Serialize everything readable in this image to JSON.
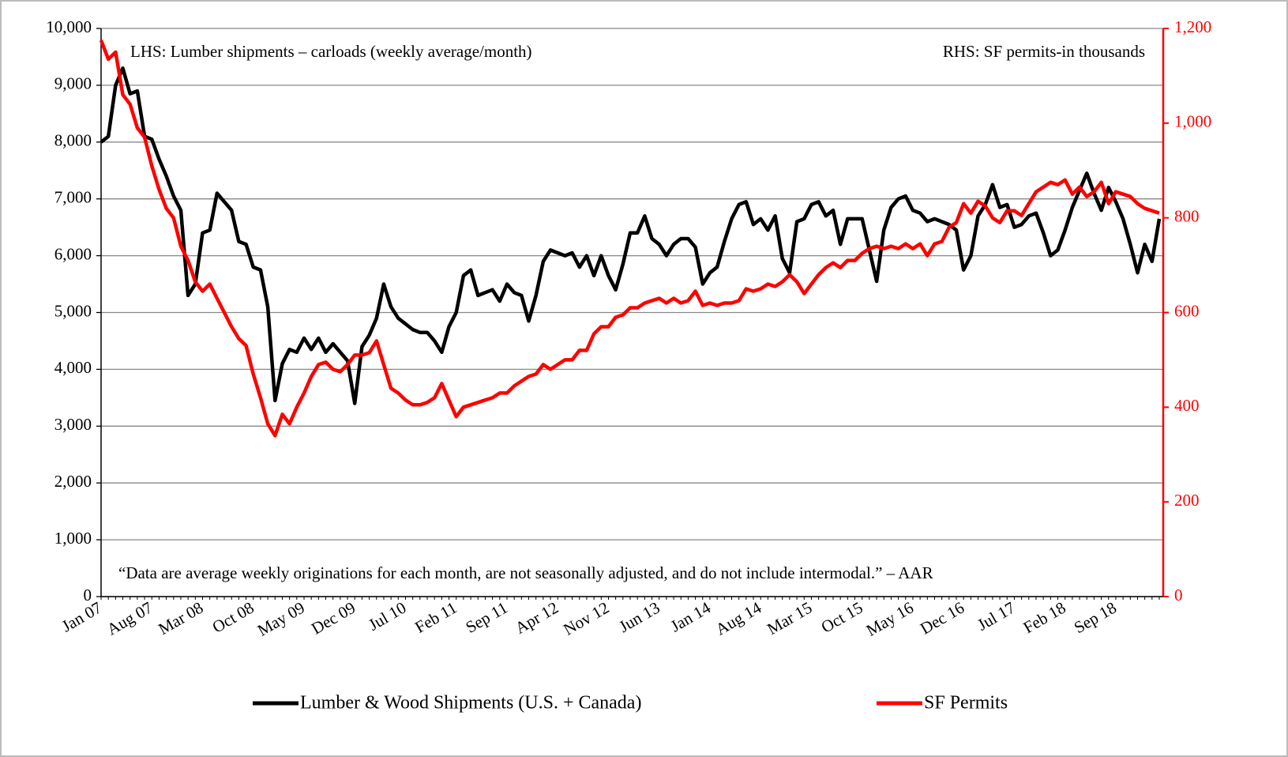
{
  "chart_data": {
    "type": "line",
    "annotations": [
      "LHS: Lumber shipments – carloads (weekly average/month)",
      "RHS: SF permits-in thousands",
      "“Data are average weekly originations for each month, are not seasonally adjusted, and do not include intermodal.” – AAR"
    ],
    "categories": [
      "Jan 07",
      null,
      null,
      null,
      null,
      null,
      null,
      "Aug 07",
      null,
      null,
      null,
      null,
      null,
      null,
      "Mar 08",
      null,
      null,
      null,
      null,
      null,
      null,
      "Oct 08",
      null,
      null,
      null,
      null,
      null,
      null,
      "May 09",
      null,
      null,
      null,
      null,
      null,
      null,
      "Dec 09",
      null,
      null,
      null,
      null,
      null,
      null,
      "Jul 10",
      null,
      null,
      null,
      null,
      null,
      null,
      "Feb 11",
      null,
      null,
      null,
      null,
      null,
      null,
      "Sep 11",
      null,
      null,
      null,
      null,
      null,
      null,
      "Apr 12",
      null,
      null,
      null,
      null,
      null,
      null,
      "Nov 12",
      null,
      null,
      null,
      null,
      null,
      null,
      "Jun 13",
      null,
      null,
      null,
      null,
      null,
      null,
      "Jan 14",
      null,
      null,
      null,
      null,
      null,
      null,
      "Aug 14",
      null,
      null,
      null,
      null,
      null,
      null,
      "Mar 15",
      null,
      null,
      null,
      null,
      null,
      null,
      "Oct 15",
      null,
      null,
      null,
      null,
      null,
      null,
      "May 16",
      null,
      null,
      null,
      null,
      null,
      null,
      "Dec 16",
      null,
      null,
      null,
      null,
      null,
      null,
      "Jul 17",
      null,
      null,
      null,
      null,
      null,
      null,
      "Feb 18",
      null,
      null,
      null,
      null,
      null,
      null,
      "Sep 18",
      null,
      null,
      null,
      null,
      null,
      null
    ],
    "series": [
      {
        "name": "Lumber & Wood Shipments (U.S. + Canada)",
        "color": "#000000",
        "axis": "y",
        "values": [
          8000,
          8100,
          9000,
          9300,
          8850,
          8900,
          8100,
          8050,
          7700,
          7400,
          7050,
          6800,
          5300,
          5500,
          6400,
          6450,
          7100,
          6950,
          6800,
          6250,
          6200,
          5800,
          5750,
          5100,
          3450,
          4100,
          4350,
          4300,
          4550,
          4350,
          4550,
          4300,
          4450,
          4300,
          4150,
          3400,
          4400,
          4600,
          4900,
          5500,
          5100,
          4900,
          4800,
          4700,
          4650,
          4650,
          4500,
          4300,
          4750,
          5000,
          5650,
          5750,
          5300,
          5350,
          5400,
          5200,
          5500,
          5350,
          5300,
          4850,
          5300,
          5900,
          6100,
          6050,
          6000,
          6050,
          5800,
          6000,
          5650,
          6000,
          5650,
          5400,
          5850,
          6400,
          6400,
          6700,
          6300,
          6200,
          6000,
          6200,
          6300,
          6300,
          6150,
          5500,
          5700,
          5800,
          6250,
          6650,
          6900,
          6950,
          6550,
          6650,
          6450,
          6700,
          5950,
          5700,
          6600,
          6650,
          6900,
          6950,
          6700,
          6800,
          6200,
          6650,
          6650,
          6650,
          6100,
          5550,
          6450,
          6850,
          7000,
          7050,
          6800,
          6750,
          6600,
          6650,
          6600,
          6550,
          6450,
          5750,
          6000,
          6700,
          6900,
          7250,
          6850,
          6900,
          6500,
          6550,
          6700,
          6750,
          6400,
          6000,
          6100,
          6450,
          6850,
          7150,
          7450,
          7100,
          6800,
          7200,
          6950,
          6650,
          6200,
          5700,
          6200,
          5900,
          6650
        ]
      },
      {
        "name": "SF Permits",
        "color": "#ff0000",
        "axis": "y2",
        "values": [
          1175,
          1135,
          1150,
          1060,
          1040,
          990,
          970,
          910,
          860,
          820,
          800,
          740,
          710,
          665,
          645,
          660,
          630,
          600,
          570,
          545,
          530,
          470,
          420,
          365,
          340,
          385,
          365,
          400,
          430,
          465,
          490,
          495,
          480,
          475,
          490,
          510,
          510,
          515,
          540,
          490,
          440,
          430,
          415,
          405,
          405,
          410,
          420,
          450,
          415,
          380,
          400,
          405,
          410,
          415,
          420,
          430,
          430,
          445,
          455,
          465,
          470,
          490,
          480,
          490,
          500,
          500,
          520,
          520,
          555,
          570,
          570,
          590,
          595,
          610,
          610,
          620,
          625,
          630,
          620,
          630,
          620,
          625,
          645,
          615,
          620,
          615,
          620,
          620,
          625,
          650,
          645,
          650,
          660,
          655,
          665,
          680,
          665,
          640,
          660,
          680,
          695,
          705,
          695,
          710,
          710,
          725,
          735,
          740,
          735,
          740,
          735,
          745,
          735,
          745,
          720,
          745,
          750,
          780,
          790,
          830,
          810,
          835,
          825,
          800,
          790,
          815,
          815,
          805,
          830,
          855,
          865,
          875,
          870,
          880,
          850,
          865,
          845,
          855,
          875,
          830,
          855,
          850,
          845,
          830,
          820,
          815,
          810
        ]
      }
    ],
    "ylim": [
      0,
      10000
    ],
    "yticks": [
      0,
      {
        "value": 1000,
        "label": "1,000"
      },
      {
        "value": 2000,
        "label": "2,000"
      },
      {
        "value": 3000,
        "label": "3,000"
      },
      {
        "value": 4000,
        "label": "4,000"
      },
      {
        "value": 5000,
        "label": "5,000"
      },
      {
        "value": 6000,
        "label": "6,000"
      },
      {
        "value": 7000,
        "label": "7,000"
      },
      {
        "value": 8000,
        "label": "8,000"
      },
      {
        "value": 9000,
        "label": "9,000"
      },
      {
        "value": 10000,
        "label": "10,000"
      }
    ],
    "y2lim": [
      0,
      1200
    ],
    "y2ticks": [
      0,
      200,
      400,
      600,
      800,
      {
        "value": 1000,
        "label": "1,000"
      },
      {
        "value": 1200,
        "label": "1,200"
      }
    ],
    "y2color": "#ff0000",
    "grid": true
  }
}
